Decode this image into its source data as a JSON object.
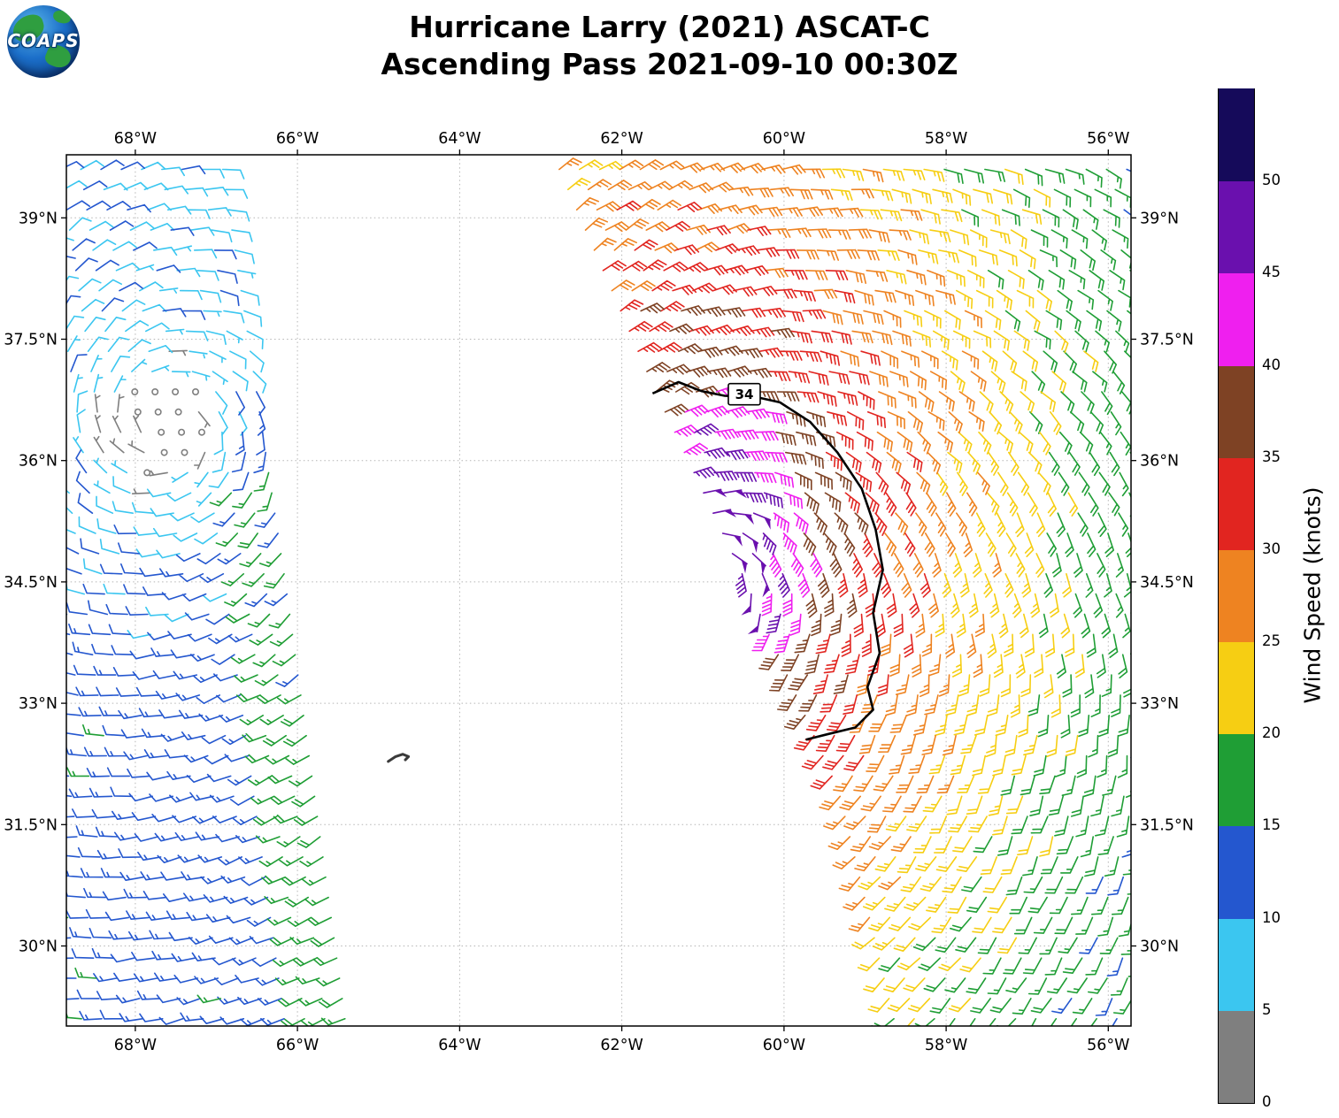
{
  "header": {
    "logo_text": "COAPS",
    "title_line1": "Hurricane Larry (2021) ASCAT-C",
    "title_line2": "Ascending Pass 2021-09-10 00:30Z"
  },
  "chart_data": {
    "type": "wind_barb_map",
    "storm_name": "Hurricane Larry (2021)",
    "satellite": "ASCAT-C",
    "pass_type": "Ascending Pass",
    "datetime_utc": "2021-09-10 00:30Z",
    "map_extent": {
      "lon_min": -68.85,
      "lon_max": -55.72,
      "lat_min": 29.01,
      "lat_max": 39.78
    },
    "grid_spacing_deg": 0.25,
    "x_ticks": [
      {
        "lon": -68,
        "label": "68°W"
      },
      {
        "lon": -66,
        "label": "66°W"
      },
      {
        "lon": -64,
        "label": "64°W"
      },
      {
        "lon": -62,
        "label": "62°W"
      },
      {
        "lon": -60,
        "label": "60°W"
      },
      {
        "lon": -58,
        "label": "58°W"
      },
      {
        "lon": -56,
        "label": "56°W"
      }
    ],
    "y_ticks": [
      {
        "lat": 39,
        "label": "39°N"
      },
      {
        "lat": 37.5,
        "label": "37.5°N"
      },
      {
        "lat": 36,
        "label": "36°N"
      },
      {
        "lat": 34.5,
        "label": "34.5°N"
      },
      {
        "lat": 33,
        "label": "33°N"
      },
      {
        "lat": 31.5,
        "label": "31.5°N"
      },
      {
        "lat": 30,
        "label": "30°N"
      }
    ],
    "colorbar": {
      "title": "Wind Speed (knots)",
      "units": "knots",
      "levels": [
        0,
        5,
        10,
        15,
        20,
        25,
        30,
        35,
        40,
        45,
        50
      ],
      "tick_labels": [
        "0",
        "5",
        "10",
        "15",
        "20",
        "25",
        "30",
        "35",
        "40",
        "45",
        "50"
      ],
      "colors": [
        "#7f7f7f",
        "#3bc6f0",
        "#2457cf",
        "#1f9e35",
        "#f6ce13",
        "#ee8321",
        "#e12520",
        "#7e4224",
        "#ef1fef",
        "#6a10ae",
        "#150a5a"
      ]
    },
    "contour_34": {
      "label": "34",
      "value_kt": 34,
      "label_lon": -60.49,
      "label_lat": 36.82,
      "points": [
        [
          -61.62,
          36.83
        ],
        [
          -61.3,
          36.97
        ],
        [
          -61.02,
          36.86
        ],
        [
          -60.73,
          36.8
        ],
        [
          -60.32,
          36.78
        ],
        [
          -60.05,
          36.72
        ],
        [
          -59.68,
          36.48
        ],
        [
          -59.34,
          36.1
        ],
        [
          -59.04,
          35.65
        ],
        [
          -58.87,
          35.15
        ],
        [
          -58.78,
          34.65
        ],
        [
          -58.9,
          34.12
        ],
        [
          -58.82,
          33.62
        ],
        [
          -58.97,
          33.2
        ],
        [
          -58.9,
          32.92
        ],
        [
          -59.12,
          32.7
        ],
        [
          -59.45,
          32.62
        ],
        [
          -59.73,
          32.55
        ]
      ]
    },
    "landmark_bermuda": {
      "name": "Bermuda",
      "points": [
        [
          -64.88,
          32.28
        ],
        [
          -64.79,
          32.34
        ],
        [
          -64.7,
          32.37
        ],
        [
          -64.63,
          32.34
        ],
        [
          -64.67,
          32.3
        ]
      ]
    },
    "swaths": {
      "right": {
        "lats": [
          29.0,
          31.9,
          34.5,
          36.8,
          39.78
        ],
        "west_edge_lons": [
          -58.62,
          -59.32,
          -60.47,
          -61.56,
          -62.85
        ]
      },
      "left": {
        "lats": [
          29.0,
          34.5,
          39.78
        ],
        "east_edge_lons": [
          -65.4,
          -66.15,
          -66.95
        ]
      }
    },
    "storm_wind": {
      "center": {
        "lon": -61.0,
        "lat": 34.6
      },
      "radius_deg": [
        0,
        0.8,
        1.15,
        1.5,
        2.0,
        2.6,
        3.4,
        4.6,
        6.0,
        7.5,
        9.5
      ],
      "speed_kt": [
        52,
        48,
        44,
        39.5,
        35.5,
        31,
        26.5,
        22,
        17.5,
        14,
        9
      ],
      "lon_scale": 1.15,
      "lat_scale_north": 0.65,
      "lat_scale_south": 0.8,
      "inflow_deg": 18,
      "noise_kt": 2.2,
      "max_kt": 49.9
    },
    "left_swath_wind": {
      "calm_center": {
        "lon": -67.6,
        "lat": 36.45
      },
      "background_kt": 13,
      "north_dip": {
        "lat": 38.5,
        "sigma": 2.0,
        "amp": 3.5
      },
      "mid_dip": {
        "lat": 34.4,
        "sigma": 1.2,
        "amp": 1.5
      },
      "calm_radius_deg": 1.0,
      "east_edge_boost_kt": 4.5,
      "east_edge_band_deg": 0.55,
      "boost_max_lat": 36.9,
      "noise_kt": 2.3,
      "inflow_deg": 10
    }
  }
}
